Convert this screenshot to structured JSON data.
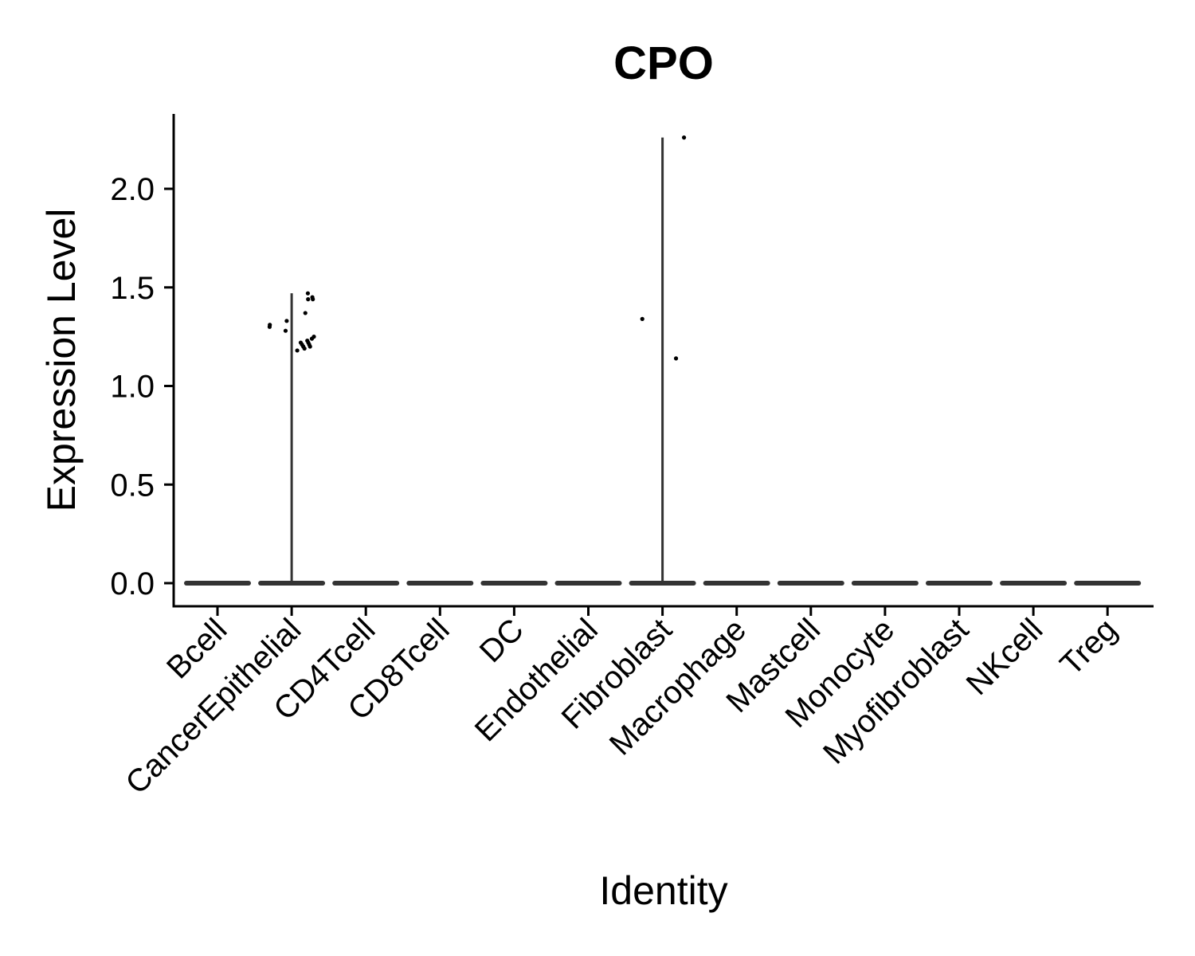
{
  "chart_data": {
    "type": "violin",
    "title": "CPO",
    "xlabel": "Identity",
    "ylabel": "Expression Level",
    "ylim": [
      -0.115,
      2.38
    ],
    "yticks": [
      "0.0",
      "0.5",
      "1.0",
      "1.5",
      "2.0"
    ],
    "ytick_values": [
      0,
      0.5,
      1.0,
      1.5,
      2.0
    ],
    "categories": [
      "Bcell",
      "CancerEpithelial",
      "CD4Tcell",
      "CD8Tcell",
      "DC",
      "Endothelial",
      "Fibroblast",
      "Macrophage",
      "Mastcell",
      "Monocyte",
      "Myofibroblast",
      "NKcell",
      "Treg"
    ],
    "violin_max": [
      0,
      1.47,
      0,
      0,
      0,
      0,
      2.26,
      0,
      0,
      0,
      0,
      0,
      0
    ],
    "points": [
      {
        "category": "CancerEpithelial",
        "values": [
          1.47,
          1.45,
          1.44,
          1.44,
          1.37,
          1.33,
          1.31,
          1.3,
          1.28,
          1.25,
          1.24,
          1.23,
          1.22,
          1.22,
          1.21,
          1.21,
          1.2,
          1.2,
          1.19,
          1.18
        ]
      },
      {
        "category": "Fibroblast",
        "values": [
          2.26,
          1.34,
          1.14
        ]
      }
    ],
    "grid": false,
    "legend": "none",
    "colors": {
      "violin": "#333333",
      "points": "#000000",
      "axis": "#000000"
    }
  }
}
